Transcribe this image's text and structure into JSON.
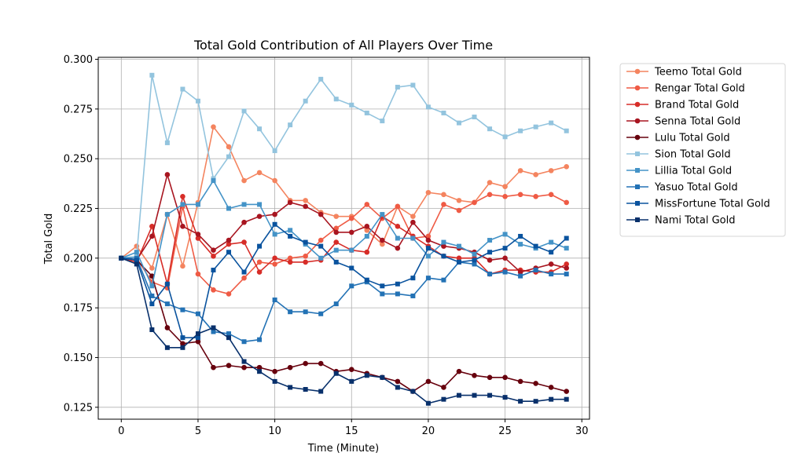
{
  "chart_data": {
    "type": "line",
    "title": "Total Gold Contribution of All Players Over Time",
    "xlabel": "Time (Minute)",
    "ylabel": "Total Gold",
    "xlim": [
      -1.5,
      30.5
    ],
    "ylim": [
      0.119,
      0.301
    ],
    "xticks": [
      0,
      5,
      10,
      15,
      20,
      25,
      30
    ],
    "yticks": [
      0.125,
      0.15,
      0.175,
      0.2,
      0.225,
      0.25,
      0.275,
      0.3
    ],
    "ytick_labels": [
      "0.125",
      "0.150",
      "0.175",
      "0.200",
      "0.225",
      "0.250",
      "0.275",
      "0.300"
    ],
    "grid": true,
    "legend_position": "outside-right",
    "x": [
      0,
      1,
      2,
      3,
      4,
      5,
      6,
      7,
      8,
      9,
      10,
      11,
      12,
      13,
      14,
      15,
      16,
      17,
      18,
      19,
      20,
      21,
      22,
      23,
      24,
      25,
      26,
      27,
      28,
      29
    ],
    "series": [
      {
        "name": "Teemo Total Gold",
        "color": "#f4845f",
        "marker": "circle",
        "values": [
          0.2,
          0.206,
          0.195,
          0.222,
          0.196,
          0.228,
          0.266,
          0.256,
          0.239,
          0.243,
          0.239,
          0.229,
          0.229,
          0.223,
          0.221,
          0.221,
          0.214,
          0.207,
          0.226,
          0.221,
          0.233,
          0.232,
          0.229,
          0.228,
          0.238,
          0.236,
          0.244,
          0.242,
          0.244,
          0.246
        ]
      },
      {
        "name": "Rengar Total Gold",
        "color": "#ef5b45",
        "marker": "circle",
        "values": [
          0.2,
          0.2,
          0.188,
          0.185,
          0.226,
          0.192,
          0.184,
          0.182,
          0.19,
          0.198,
          0.197,
          0.2,
          0.201,
          0.209,
          0.215,
          0.22,
          0.227,
          0.22,
          0.226,
          0.21,
          0.211,
          0.227,
          0.224,
          0.228,
          0.232,
          0.231,
          0.232,
          0.231,
          0.232,
          0.228
        ]
      },
      {
        "name": "Brand Total Gold",
        "color": "#d72d28",
        "marker": "circle",
        "values": [
          0.2,
          0.198,
          0.216,
          0.187,
          0.231,
          0.21,
          0.201,
          0.207,
          0.208,
          0.193,
          0.2,
          0.198,
          0.198,
          0.199,
          0.208,
          0.204,
          0.203,
          0.221,
          0.216,
          0.211,
          0.206,
          0.201,
          0.2,
          0.2,
          0.192,
          0.194,
          0.194,
          0.193,
          0.193,
          0.197
        ]
      },
      {
        "name": "Senna Total Gold",
        "color": "#a81520",
        "marker": "circle",
        "values": [
          0.2,
          0.199,
          0.211,
          0.242,
          0.216,
          0.212,
          0.204,
          0.209,
          0.218,
          0.221,
          0.222,
          0.228,
          0.226,
          0.222,
          0.213,
          0.213,
          0.216,
          0.209,
          0.205,
          0.218,
          0.209,
          0.206,
          0.205,
          0.203,
          0.199,
          0.2,
          0.193,
          0.195,
          0.197,
          0.195
        ]
      },
      {
        "name": "Lulu Total Gold",
        "color": "#67000d",
        "marker": "circle",
        "values": [
          0.2,
          0.199,
          0.191,
          0.165,
          0.157,
          0.158,
          0.145,
          0.146,
          0.145,
          0.145,
          0.143,
          0.145,
          0.147,
          0.147,
          0.143,
          0.144,
          0.142,
          0.14,
          0.138,
          0.133,
          0.138,
          0.135,
          0.143,
          0.141,
          0.14,
          0.14,
          0.138,
          0.137,
          0.135,
          0.133
        ]
      },
      {
        "name": "Sion Total Gold",
        "color": "#93c4de",
        "marker": "square",
        "values": [
          0.2,
          0.201,
          0.292,
          0.258,
          0.285,
          0.279,
          0.24,
          0.251,
          0.274,
          0.265,
          0.254,
          0.267,
          0.279,
          0.29,
          0.28,
          0.277,
          0.273,
          0.269,
          0.286,
          0.287,
          0.276,
          0.273,
          0.268,
          0.271,
          0.265,
          0.261,
          0.264,
          0.266,
          0.268,
          0.264
        ]
      },
      {
        "name": "Lillia Total Gold",
        "color": "#4493c7",
        "marker": "square",
        "values": [
          0.2,
          0.203,
          0.186,
          0.222,
          0.227,
          0.227,
          0.239,
          0.225,
          0.227,
          0.227,
          0.212,
          0.214,
          0.207,
          0.2,
          0.204,
          0.204,
          0.211,
          0.222,
          0.21,
          0.21,
          0.201,
          0.208,
          0.206,
          0.202,
          0.209,
          0.212,
          0.207,
          0.205,
          0.208,
          0.205
        ]
      },
      {
        "name": "Yasuo Total Gold",
        "color": "#2372b5",
        "marker": "square",
        "values": [
          0.2,
          0.2,
          0.181,
          0.177,
          0.174,
          0.172,
          0.163,
          0.162,
          0.158,
          0.159,
          0.179,
          0.173,
          0.173,
          0.172,
          0.177,
          0.186,
          0.188,
          0.182,
          0.182,
          0.181,
          0.19,
          0.189,
          0.198,
          0.197,
          0.192,
          0.193,
          0.191,
          0.194,
          0.192,
          0.192
        ]
      },
      {
        "name": "MissFortune Total Gold",
        "color": "#0a539e",
        "marker": "square",
        "values": [
          0.2,
          0.199,
          0.177,
          0.187,
          0.16,
          0.16,
          0.194,
          0.203,
          0.193,
          0.206,
          0.217,
          0.211,
          0.208,
          0.206,
          0.198,
          0.195,
          0.189,
          0.186,
          0.187,
          0.19,
          0.205,
          0.201,
          0.198,
          0.199,
          0.203,
          0.205,
          0.211,
          0.206,
          0.203,
          0.21
        ]
      },
      {
        "name": "Nami Total Gold",
        "color": "#08306b",
        "marker": "square",
        "values": [
          0.2,
          0.197,
          0.164,
          0.155,
          0.155,
          0.162,
          0.165,
          0.16,
          0.148,
          0.143,
          0.138,
          0.135,
          0.134,
          0.133,
          0.142,
          0.138,
          0.141,
          0.14,
          0.135,
          0.133,
          0.127,
          0.129,
          0.131,
          0.131,
          0.131,
          0.13,
          0.128,
          0.128,
          0.129,
          0.129
        ]
      }
    ]
  }
}
